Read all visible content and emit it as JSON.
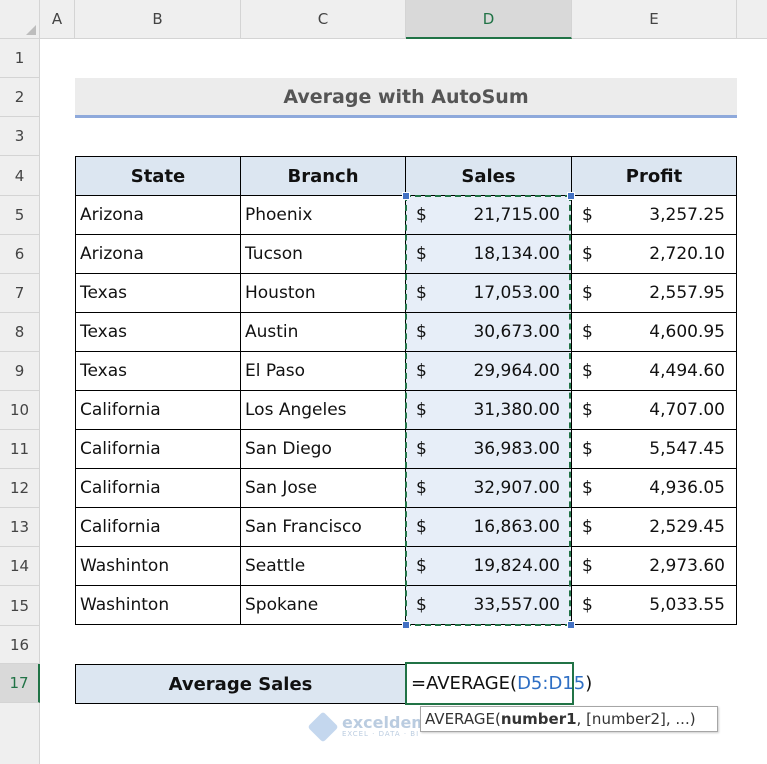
{
  "columns": [
    "A",
    "B",
    "C",
    "D",
    "E"
  ],
  "selected_column": "D",
  "rows": [
    "1",
    "2",
    "3",
    "4",
    "5",
    "6",
    "7",
    "8",
    "9",
    "10",
    "11",
    "12",
    "13",
    "14",
    "15",
    "16",
    "17"
  ],
  "selected_row": "17",
  "title": "Average with AutoSum",
  "table": {
    "headers": [
      "State",
      "Branch",
      "Sales",
      "Profit"
    ],
    "rows": [
      {
        "state": "Arizona",
        "branch": "Phoenix",
        "sales": "21,715.00",
        "profit": "3,257.25"
      },
      {
        "state": "Arizona",
        "branch": "Tucson",
        "sales": "18,134.00",
        "profit": "2,720.10"
      },
      {
        "state": "Texas",
        "branch": "Houston",
        "sales": "17,053.00",
        "profit": "2,557.95"
      },
      {
        "state": "Texas",
        "branch": "Austin",
        "sales": "30,673.00",
        "profit": "4,600.95"
      },
      {
        "state": "Texas",
        "branch": "El Paso",
        "sales": "29,964.00",
        "profit": "4,494.60"
      },
      {
        "state": "California",
        "branch": "Los Angeles",
        "sales": "31,380.00",
        "profit": "4,707.00"
      },
      {
        "state": "California",
        "branch": "San Diego",
        "sales": "36,983.00",
        "profit": "5,547.45"
      },
      {
        "state": "California",
        "branch": "San Jose",
        "sales": "32,907.00",
        "profit": "4,936.05"
      },
      {
        "state": "California",
        "branch": "San Francisco",
        "sales": "16,863.00",
        "profit": "2,529.45"
      },
      {
        "state": "Washinton",
        "branch": "Seattle",
        "sales": "19,824.00",
        "profit": "2,973.60"
      },
      {
        "state": "Washinton",
        "branch": "Spokane",
        "sales": "33,557.00",
        "profit": "5,033.55"
      }
    ],
    "currency_symbol": "$"
  },
  "average": {
    "label": "Average Sales",
    "formula_prefix": "=AVERAGE(",
    "formula_ref": "D5:D15",
    "formula_suffix": ")"
  },
  "tooltip": {
    "fn": "AVERAGE(",
    "arg1": "number1",
    "rest": ", [number2], ...)"
  },
  "watermark": {
    "name": "exceldemy",
    "tagline": "EXCEL · DATA · BI"
  },
  "colors": {
    "header_fill": "#dce6f1",
    "selection_green": "#217346",
    "reference_blue": "#2f6fc4"
  }
}
